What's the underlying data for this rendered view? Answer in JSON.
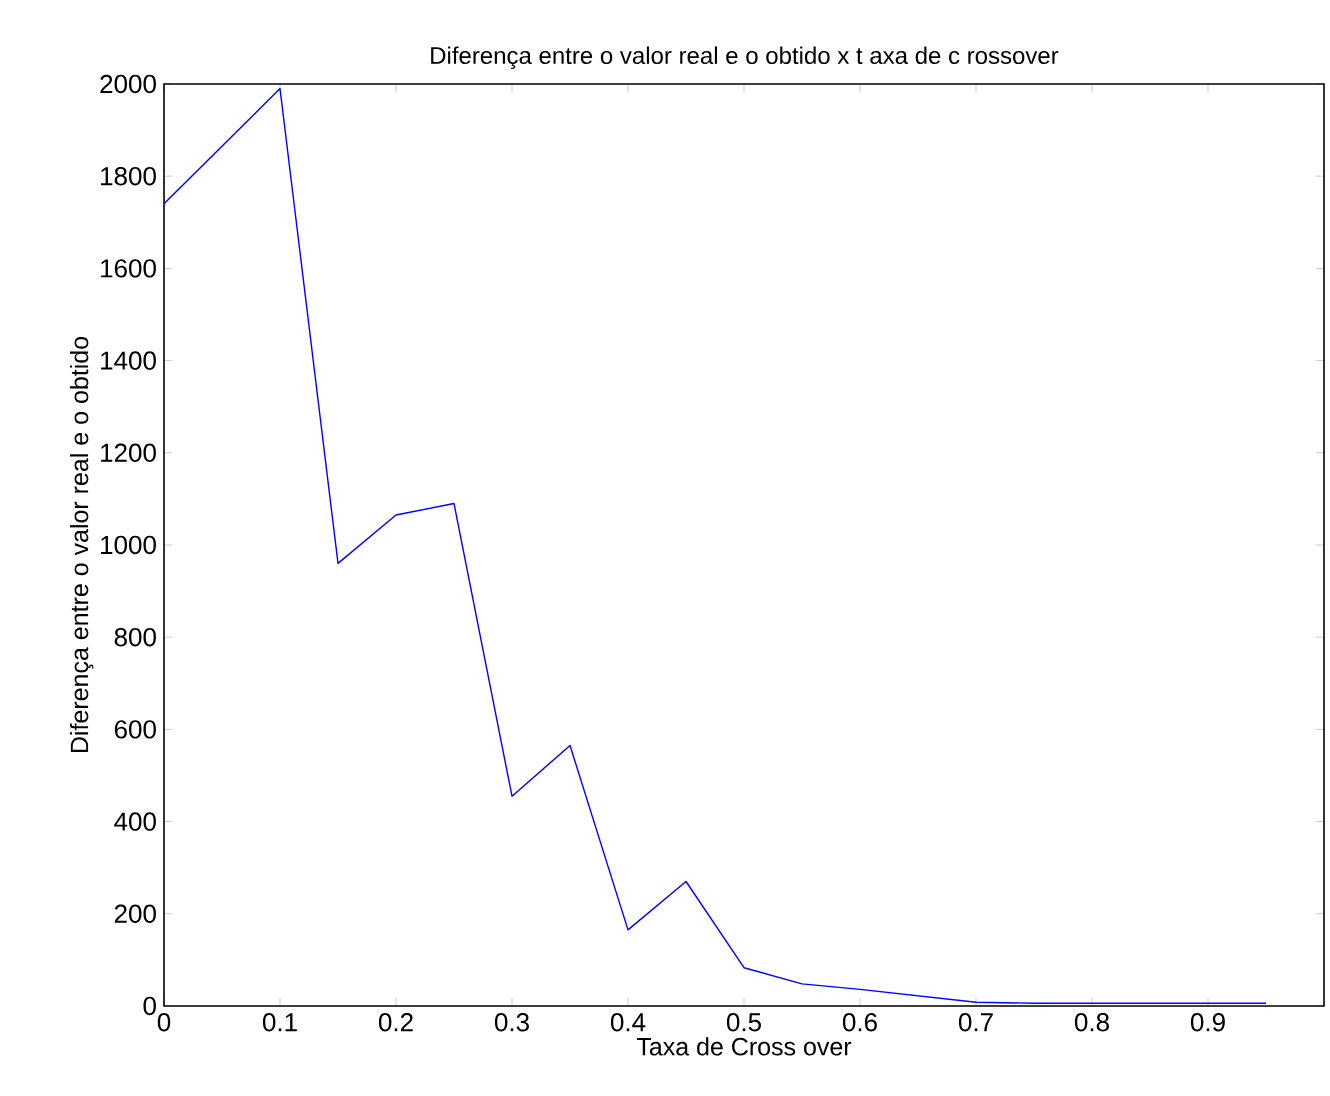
{
  "chart_data": {
    "type": "line",
    "title": "Diferença entre o valor real e o obtido x t axa de c rossover",
    "xlabel": "Taxa de Cross over",
    "ylabel": "Diferença entre o valor real e o obtido",
    "x": [
      0,
      0.1,
      0.15,
      0.2,
      0.25,
      0.3,
      0.35,
      0.4,
      0.45,
      0.5,
      0.55,
      0.6,
      0.65,
      0.7,
      0.75,
      0.8,
      0.85,
      0.9,
      0.95
    ],
    "series": [
      {
        "color": "#0000ff",
        "values": [
          1740,
          1990,
          960,
          1065,
          1090,
          455,
          565,
          165,
          270,
          83,
          48,
          36,
          22,
          8,
          6,
          6,
          6,
          6,
          6
        ]
      }
    ],
    "xlim": [
      0,
      1
    ],
    "xticks": [
      0,
      0.1,
      0.2,
      0.3,
      0.4,
      0.5,
      0.6,
      0.7,
      0.8,
      0.9
    ],
    "ylim": [
      0,
      2000
    ],
    "yticks": [
      0,
      200,
      400,
      600,
      800,
      1000,
      1200,
      1400,
      1600,
      1800,
      2000
    ],
    "grid": false,
    "marker": "none",
    "line_style": "solid"
  }
}
